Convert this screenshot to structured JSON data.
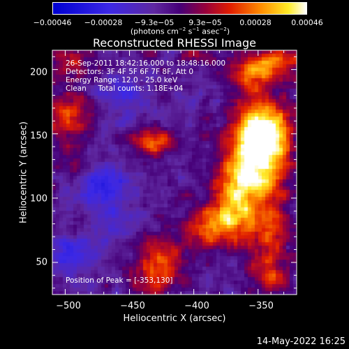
{
  "colorbar": {
    "ticks": [
      "−0.00046",
      "−0.00028",
      "−9.3e−05",
      "9.3e−05",
      "0.00028",
      "0.00046"
    ],
    "unit_prefix": "(photons cm",
    "unit_exp1": "−2",
    "unit_mid1": " s",
    "unit_exp2": "−1",
    "unit_mid2": " asec",
    "unit_exp3": "−2",
    "unit_suffix": ")",
    "range": [
      -0.00046,
      0.00046
    ]
  },
  "chart_data": {
    "type": "heatmap",
    "title": "Reconstructed RHESSI Image",
    "xlabel": "Heliocentric X (arcsec)",
    "ylabel": "Heliocentric Y (arcsec)",
    "xlim": [
      -510,
      -320
    ],
    "ylim": [
      25,
      215
    ],
    "xticks": [
      -500,
      -450,
      -400,
      -350
    ],
    "yticks": [
      50,
      100,
      150,
      200
    ],
    "xtick_labels": [
      "−500",
      "−450",
      "−400",
      "−350"
    ],
    "ytick_labels": [
      "50",
      "100",
      "150",
      "200"
    ],
    "colormap": "rhessi-red-yellow-blue",
    "peak": [
      -353,
      130
    ],
    "blobs": [
      {
        "x": -350,
        "y": 130,
        "sx": 15,
        "sy": 28,
        "amp": 0.00046
      },
      {
        "x": -345,
        "y": 150,
        "sx": 14,
        "sy": 16,
        "amp": 0.00036
      },
      {
        "x": -368,
        "y": 100,
        "sx": 12,
        "sy": 18,
        "amp": 0.00034
      },
      {
        "x": -385,
        "y": 78,
        "sx": 14,
        "sy": 10,
        "amp": 0.00032
      },
      {
        "x": -340,
        "y": 70,
        "sx": 12,
        "sy": 14,
        "amp": 0.00022
      },
      {
        "x": -340,
        "y": 40,
        "sx": 12,
        "sy": 10,
        "amp": 0.0002
      },
      {
        "x": -338,
        "y": 205,
        "sx": 18,
        "sy": 10,
        "amp": 0.00027
      },
      {
        "x": -355,
        "y": 195,
        "sx": 10,
        "sy": 8,
        "amp": 0.0002
      },
      {
        "x": -430,
        "y": 143,
        "sx": 14,
        "sy": 8,
        "amp": 0.00026
      },
      {
        "x": -497,
        "y": 165,
        "sx": 12,
        "sy": 12,
        "amp": 0.00026
      },
      {
        "x": -500,
        "y": 205,
        "sx": 14,
        "sy": 10,
        "amp": 0.00018
      },
      {
        "x": -495,
        "y": 130,
        "sx": 10,
        "sy": 10,
        "amp": 0.00012
      },
      {
        "x": -427,
        "y": 57,
        "sx": 14,
        "sy": 12,
        "amp": 0.00024
      },
      {
        "x": -430,
        "y": 35,
        "sx": 14,
        "sy": 10,
        "amp": 0.0002
      },
      {
        "x": -398,
        "y": 210,
        "sx": 10,
        "sy": 6,
        "amp": 0.00016
      },
      {
        "x": -470,
        "y": 110,
        "sx": 14,
        "sy": 12,
        "amp": -0.00022
      },
      {
        "x": -455,
        "y": 180,
        "sx": 14,
        "sy": 12,
        "amp": -0.00016
      },
      {
        "x": -495,
        "y": 55,
        "sx": 14,
        "sy": 12,
        "amp": -0.0002
      },
      {
        "x": -460,
        "y": 80,
        "sx": 10,
        "sy": 10,
        "amp": -0.00014
      }
    ]
  },
  "annotations": {
    "time": "26-Sep-2011 18:42:16.000 to 18:48:16.000",
    "detectors": "Detectors: 3F 4F 5F 6F 7F 8F, Att 0",
    "energy": "Energy Range: 12.0 - 25.0 keV",
    "clean": "Clean     Total counts: 1.18E+04",
    "peak": "Position of Peak = [-353,130]"
  },
  "timestamp": "14-May-2022 16:25"
}
